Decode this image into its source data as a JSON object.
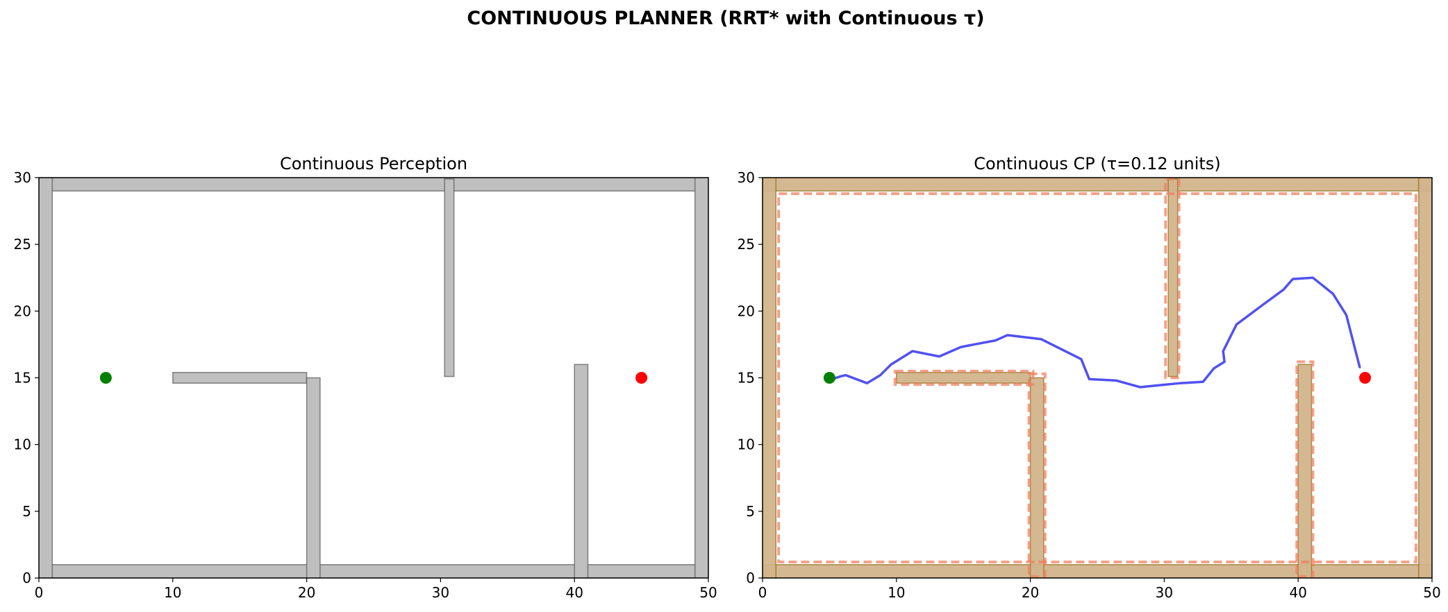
{
  "figure": {
    "suptitle": "CONTINUOUS PLANNER (RRT* with Continuous τ)"
  },
  "chart_data": [
    {
      "type": "scatter",
      "title": "Continuous Perception",
      "xlabel": "",
      "ylabel": "",
      "xlim": [
        0,
        50
      ],
      "ylim": [
        0,
        30
      ],
      "xticks": [
        0,
        10,
        20,
        30,
        40,
        50
      ],
      "yticks": [
        0,
        5,
        10,
        15,
        20,
        25,
        30
      ],
      "grid": false,
      "obstacles": [
        {
          "x": 0,
          "y": 0,
          "w": 50,
          "h": 1
        },
        {
          "x": 0,
          "y": 29,
          "w": 50,
          "h": 1
        },
        {
          "x": 0,
          "y": 0,
          "w": 1,
          "h": 30
        },
        {
          "x": 49,
          "y": 0,
          "w": 1,
          "h": 30
        },
        {
          "x": 10,
          "y": 14.6,
          "w": 10,
          "h": 0.8
        },
        {
          "x": 20,
          "y": 0,
          "w": 1,
          "h": 15
        },
        {
          "x": 30.3,
          "y": 15.1,
          "w": 0.7,
          "h": 14.8
        },
        {
          "x": 40,
          "y": 0,
          "w": 1,
          "h": 16
        }
      ],
      "start": {
        "x": 5,
        "y": 15
      },
      "goal": {
        "x": 45,
        "y": 15
      },
      "colors": {
        "obstacle": "#bfbfbf",
        "obstacle_edge": "#555555",
        "start": "#008000",
        "goal": "#ff0000"
      }
    },
    {
      "type": "line",
      "title": "Continuous CP (τ=0.12 units)",
      "xlabel": "",
      "ylabel": "",
      "xlim": [
        0,
        50
      ],
      "ylim": [
        0,
        30
      ],
      "xticks": [
        0,
        10,
        20,
        30,
        40,
        50
      ],
      "yticks": [
        0,
        5,
        10,
        15,
        20,
        25,
        30
      ],
      "grid": false,
      "tau": 0.12,
      "obstacles": [
        {
          "x": 0,
          "y": 0,
          "w": 50,
          "h": 1
        },
        {
          "x": 0,
          "y": 29,
          "w": 50,
          "h": 1
        },
        {
          "x": 0,
          "y": 0,
          "w": 1,
          "h": 30
        },
        {
          "x": 49,
          "y": 0,
          "w": 1,
          "h": 30
        },
        {
          "x": 10,
          "y": 14.6,
          "w": 10,
          "h": 0.8
        },
        {
          "x": 20,
          "y": 0,
          "w": 1,
          "h": 15
        },
        {
          "x": 30.3,
          "y": 15.1,
          "w": 0.7,
          "h": 14.8
        },
        {
          "x": 40,
          "y": 0,
          "w": 1,
          "h": 16
        }
      ],
      "inflated": [
        {
          "x": 1.2,
          "y": 1.2,
          "w": 47.6,
          "h": 27.6
        },
        {
          "x": 9.9,
          "y": 14.5,
          "w": 10.3,
          "h": 1.0
        },
        {
          "x": 19.9,
          "y": 0.1,
          "w": 1.2,
          "h": 15.2
        },
        {
          "x": 30.1,
          "y": 15.0,
          "w": 1.0,
          "h": 14.9
        },
        {
          "x": 39.9,
          "y": 0.1,
          "w": 1.2,
          "h": 16.1
        }
      ],
      "path": {
        "x": [
          5.2,
          5.8,
          6.2,
          7.8,
          8.8,
          9.6,
          11.2,
          13.2,
          14.8,
          15.8,
          17.4,
          18.3,
          20.8,
          23.8,
          24.4,
          26.4,
          28.2,
          29.2,
          31.2,
          32.9,
          33.7,
          34.5,
          34.4,
          35.4,
          37.4,
          38.9,
          39.6,
          41.1,
          42.6,
          43.6,
          44.6
        ],
        "y": [
          14.9,
          15.1,
          15.2,
          14.6,
          15.2,
          16.0,
          17.0,
          16.6,
          17.3,
          17.5,
          17.8,
          18.2,
          17.9,
          16.4,
          14.9,
          14.8,
          14.3,
          14.4,
          14.6,
          14.7,
          15.7,
          16.2,
          17.0,
          19.0,
          20.5,
          21.6,
          22.4,
          22.5,
          21.3,
          19.7,
          15.8
        ]
      },
      "start": {
        "x": 5,
        "y": 15
      },
      "goal": {
        "x": 45,
        "y": 15
      },
      "colors": {
        "obstacle": "#d2b48c",
        "obstacle_edge": "#8b6914",
        "inflated_edge": "#f08060",
        "path": "#3333ee",
        "start": "#008000",
        "goal": "#ff0000"
      }
    }
  ]
}
